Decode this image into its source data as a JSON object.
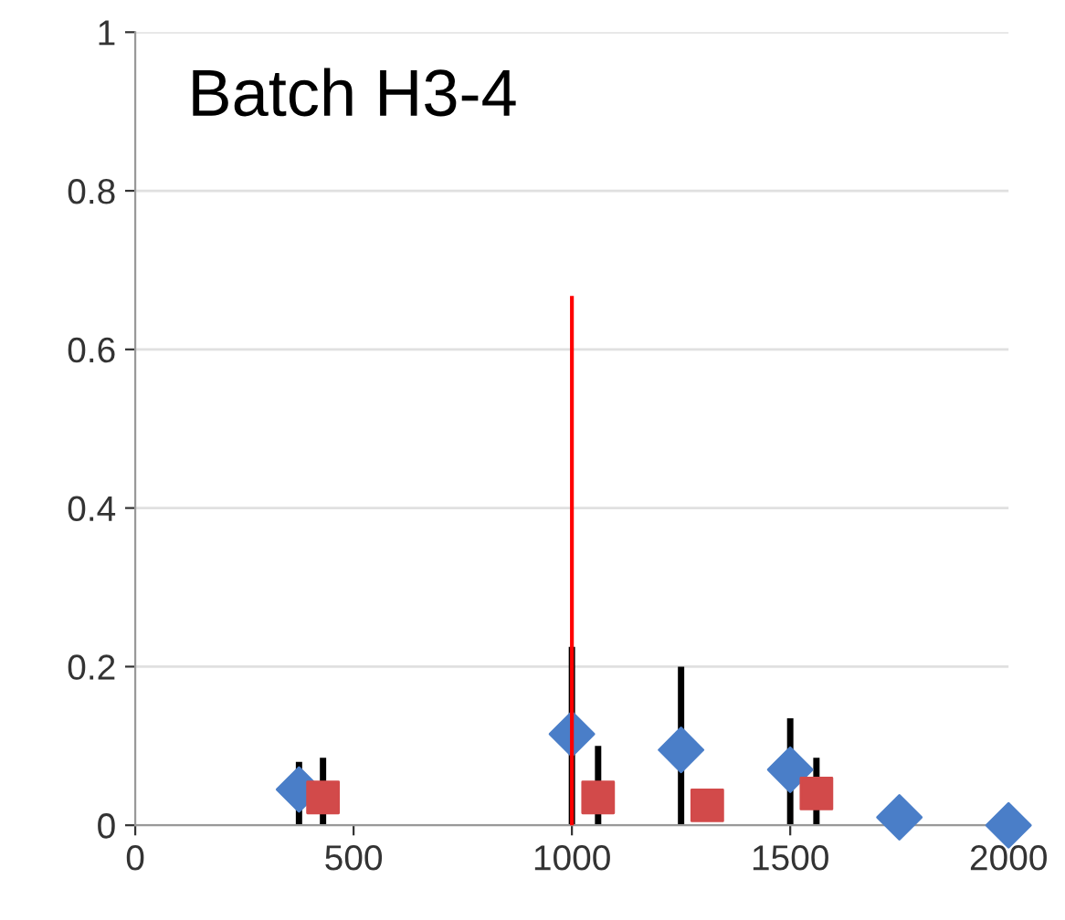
{
  "chart_data": {
    "type": "scatter",
    "title": "Batch H3-4",
    "xlim": [
      0,
      2000
    ],
    "xticks": [
      0,
      500,
      1000,
      1500,
      2000
    ],
    "ylim": [
      0,
      1
    ],
    "yticks": [
      0,
      0.2,
      0.4,
      0.6,
      0.8,
      1
    ],
    "grid": "y",
    "legend": false,
    "series": [
      {
        "marker": "diamond",
        "color": "#4a7ec8",
        "x": [
          375,
          1000,
          1250,
          1500,
          1750,
          2000
        ],
        "values": [
          0.045,
          0.115,
          0.095,
          0.07,
          0.01,
          0.0
        ],
        "errors": [
          [
            0,
            0.08
          ],
          [
            0,
            0.225
          ],
          [
            0,
            0.2
          ],
          [
            0,
            0.135
          ],
          null,
          null
        ]
      },
      {
        "marker": "square",
        "color": "#d24a4a",
        "x": [
          430,
          1060,
          1310,
          1560
        ],
        "values": [
          0.035,
          0.035,
          0.025,
          0.04
        ],
        "errors": [
          [
            0,
            0.085
          ],
          [
            0,
            0.1
          ],
          null,
          [
            0,
            0.085
          ]
        ]
      },
      {
        "type": "line",
        "marker": "none",
        "color": "#ff0000",
        "x": [
          1000,
          1000
        ],
        "values": [
          0,
          0.665
        ]
      }
    ]
  }
}
